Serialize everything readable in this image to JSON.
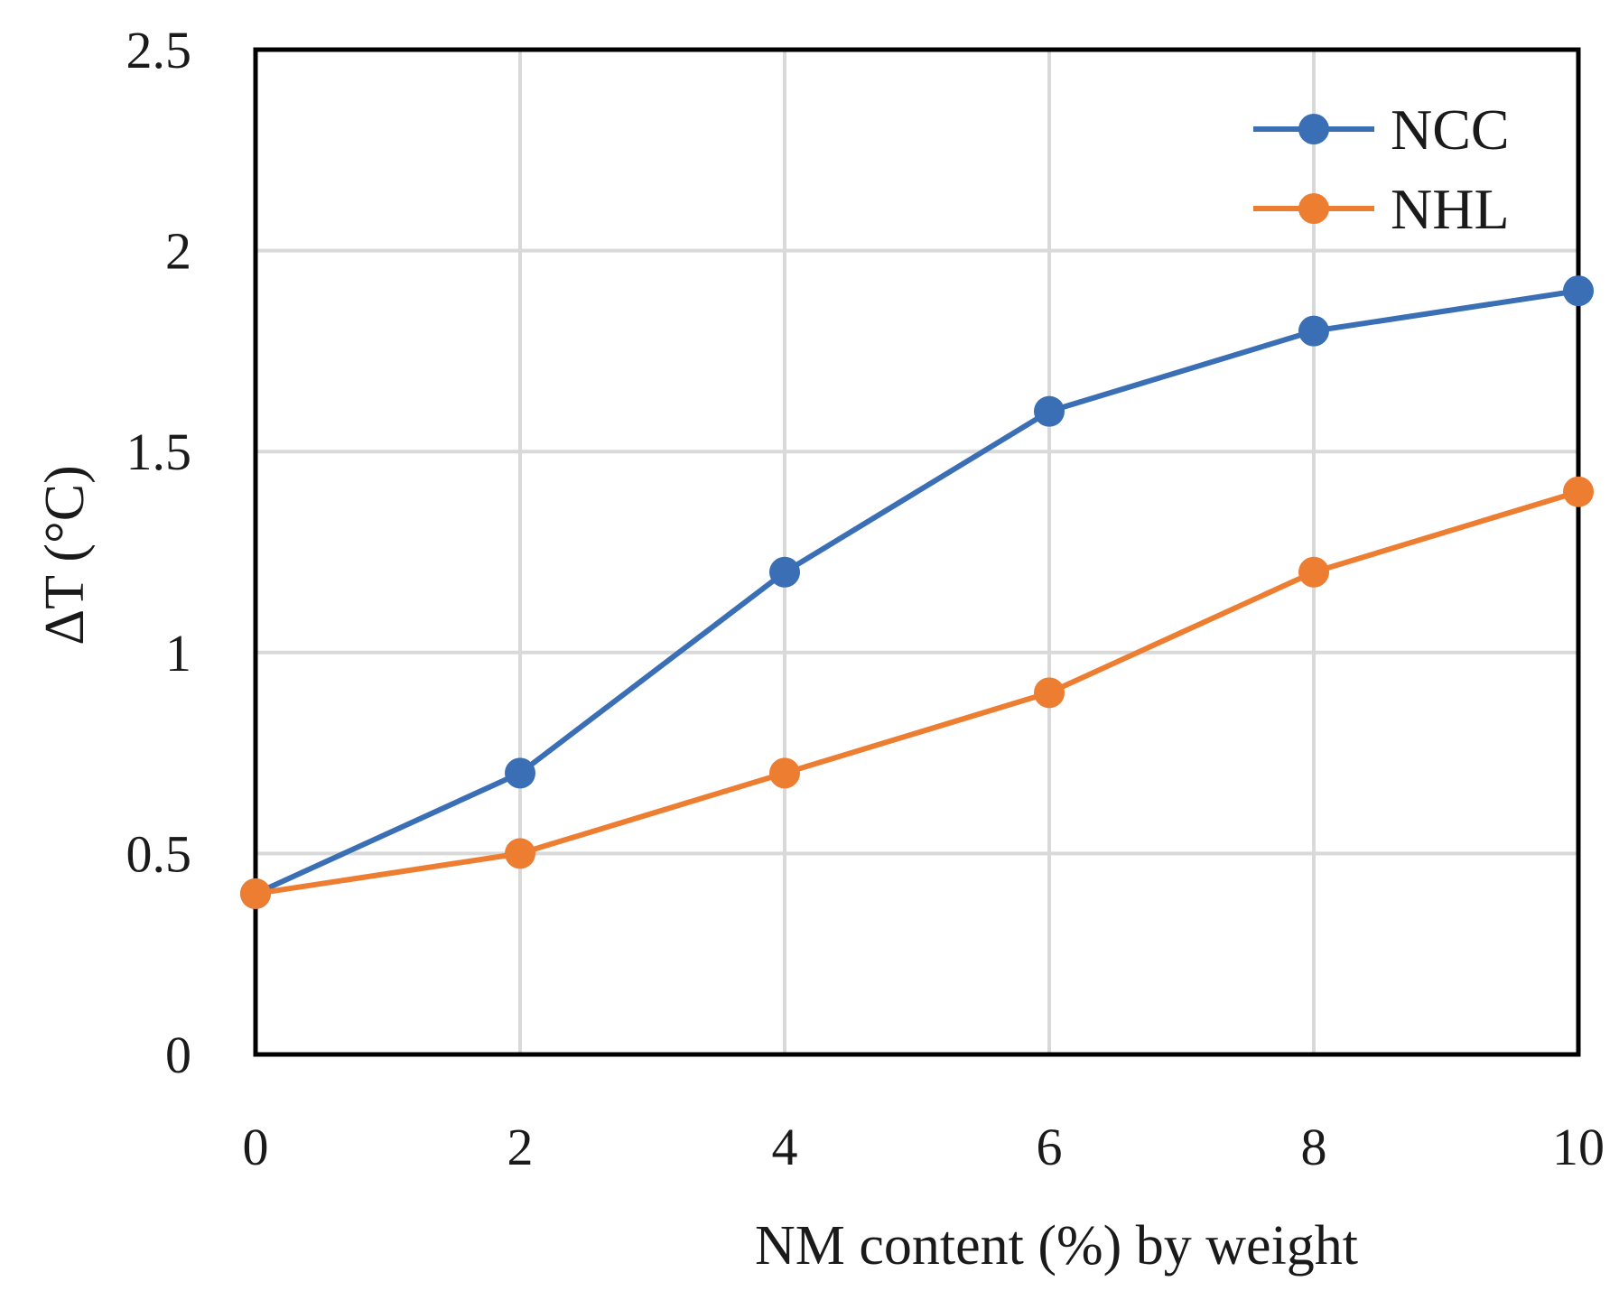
{
  "chart_data": {
    "type": "line",
    "title": "",
    "xlabel": "NM content (%) by weight",
    "ylabel": "ΔT (°C)",
    "x": [
      0,
      2,
      4,
      6,
      8,
      10
    ],
    "xlim": [
      0,
      10
    ],
    "ylim": [
      0,
      2.5
    ],
    "x_ticks": [
      0,
      2,
      4,
      6,
      8,
      10
    ],
    "x_tick_labels": [
      "0",
      "2",
      "4",
      "6",
      "8",
      "10"
    ],
    "y_ticks": [
      0,
      0.5,
      1,
      1.5,
      2,
      2.5
    ],
    "y_tick_labels": [
      "0",
      "0.5",
      "1",
      "1.5",
      "2",
      "2.5"
    ],
    "grid": true,
    "legend_position": "top-right",
    "series": [
      {
        "name": "NCC",
        "color": "#3A6EB5",
        "values": [
          0.4,
          0.7,
          1.2,
          1.6,
          1.8,
          1.9
        ]
      },
      {
        "name": "NHL",
        "color": "#ED7D31",
        "values": [
          0.4,
          0.5,
          0.7,
          0.9,
          1.2,
          1.4
        ]
      }
    ]
  }
}
